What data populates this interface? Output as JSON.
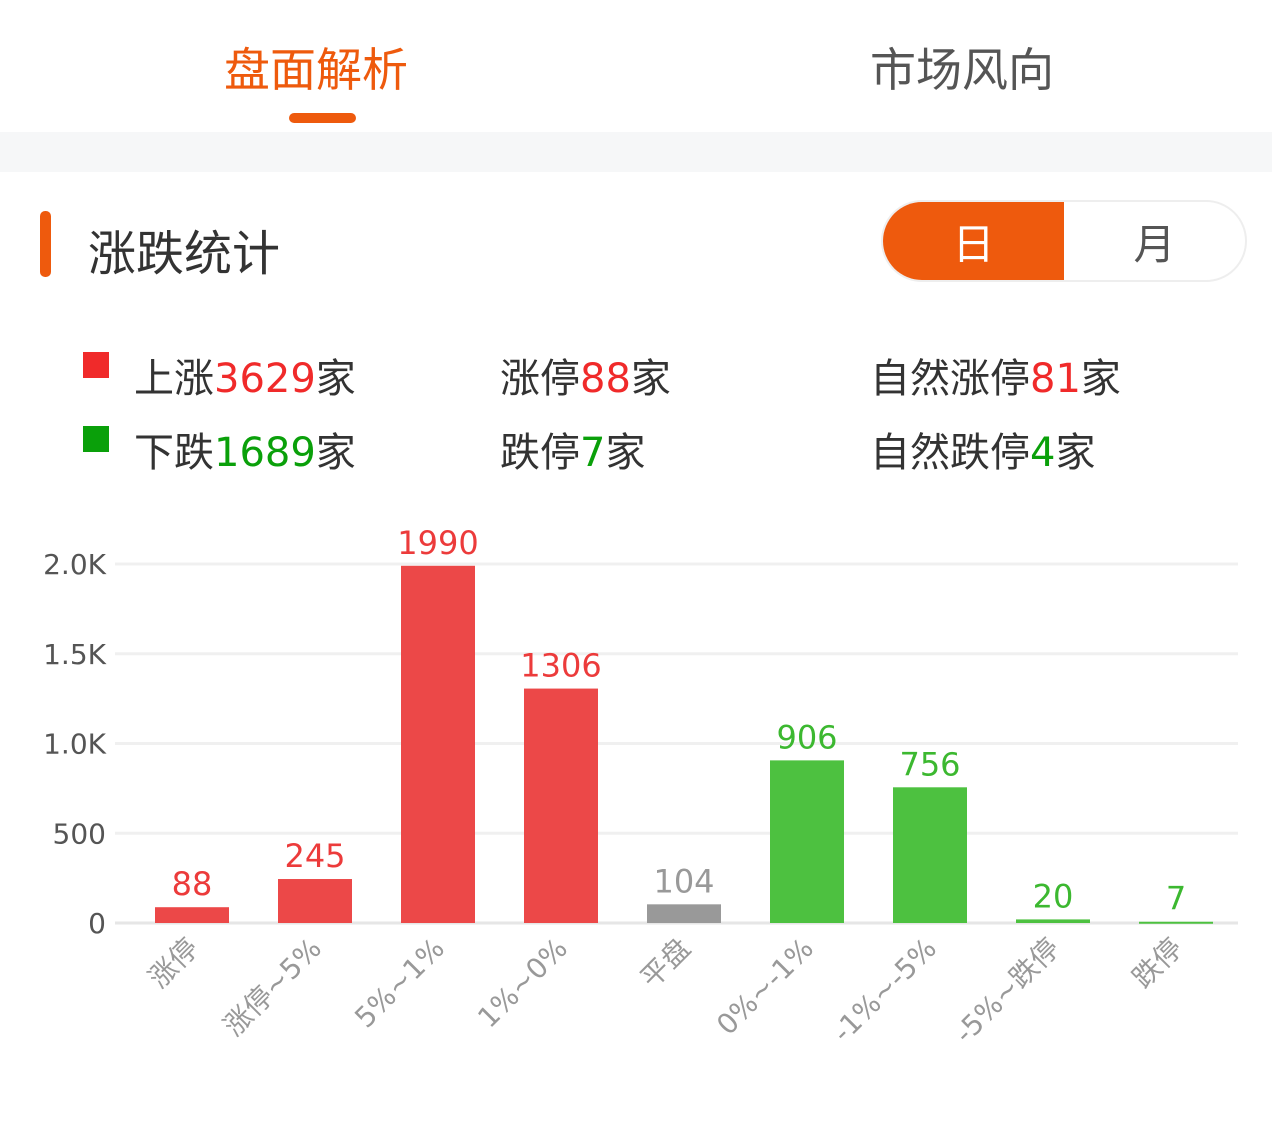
{
  "tabs": [
    {
      "label": "盘面解析",
      "active": true
    },
    {
      "label": "市场风向",
      "active": false
    }
  ],
  "section": {
    "title": "涨跌统计",
    "toggle": [
      {
        "label": "日",
        "active": true
      },
      {
        "label": "月",
        "active": false
      }
    ]
  },
  "summary": {
    "up": {
      "prefix": "上涨",
      "value": "3629",
      "suffix": "家",
      "marker_color": "#f02a2a"
    },
    "down": {
      "prefix": "下跌",
      "value": "1689",
      "suffix": "家",
      "marker_color": "#0aa00a"
    },
    "limit_up": {
      "prefix": "涨停",
      "value": "88",
      "suffix": "家"
    },
    "limit_down": {
      "prefix": "跌停",
      "value": "7",
      "suffix": "家"
    },
    "natural_limit_up": {
      "prefix": "自然涨停",
      "value": "81",
      "suffix": "家"
    },
    "natural_limit_down": {
      "prefix": "自然跌停",
      "value": "4",
      "suffix": "家"
    }
  },
  "chart_data": {
    "type": "bar",
    "categories": [
      "涨停",
      "涨停~5%",
      "5%~1%",
      "1%~0%",
      "平盘",
      "0%~-1%",
      "-1%~-5%",
      "-5%~跌停",
      "跌停"
    ],
    "values": [
      88,
      245,
      1990,
      1306,
      104,
      906,
      756,
      20,
      7
    ],
    "colors": [
      "#ec4848",
      "#ec4848",
      "#ec4848",
      "#ec4848",
      "#999999",
      "#4dc140",
      "#4dc140",
      "#4dc140",
      "#4dc140"
    ],
    "label_colors": [
      "#ec3b3b",
      "#ec3b3b",
      "#ec3b3b",
      "#ec3b3b",
      "#999999",
      "#3cb830",
      "#3cb830",
      "#3cb830",
      "#3cb830"
    ],
    "yticks": [
      0,
      500,
      1000,
      1500,
      2000
    ],
    "ytick_labels": [
      "0",
      "500",
      "1.0K",
      "1.5K",
      "2.0K"
    ],
    "ylim": [
      0,
      2000
    ],
    "grid": true
  }
}
